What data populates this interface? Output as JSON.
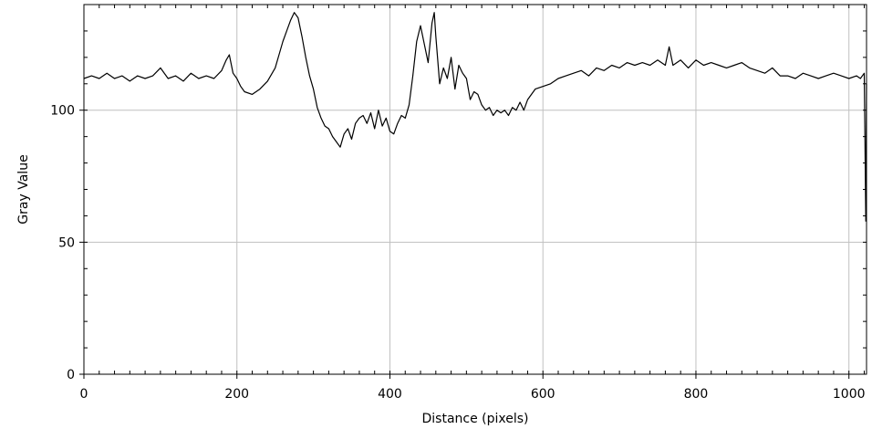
{
  "chart_data": {
    "type": "line",
    "title": "",
    "xlabel": "Distance (pixels)",
    "ylabel": "Gray Value",
    "xlim": [
      0,
      1023
    ],
    "ylim": [
      0,
      140
    ],
    "x_ticks": [
      {
        "value": 0,
        "label": "0"
      },
      {
        "value": 200,
        "label": "200"
      },
      {
        "value": 400,
        "label": "400"
      },
      {
        "value": 600,
        "label": "600"
      },
      {
        "value": 800,
        "label": "800"
      },
      {
        "value": 1000,
        "label": "1000"
      }
    ],
    "y_ticks": [
      {
        "value": 0,
        "label": "0"
      },
      {
        "value": 50,
        "label": "50"
      },
      {
        "value": 100,
        "label": "100"
      }
    ],
    "grid": true,
    "line_color": "#000000",
    "grid_color": "#c0c0c0",
    "series": [
      {
        "x": [
          0,
          10,
          20,
          30,
          40,
          50,
          60,
          70,
          80,
          90,
          100,
          110,
          120,
          130,
          140,
          150,
          160,
          170,
          180,
          186,
          190,
          195,
          200,
          205,
          210,
          220,
          230,
          240,
          250,
          255,
          260,
          265,
          270,
          275,
          280,
          285,
          290,
          295,
          300,
          305,
          310,
          315,
          320,
          325,
          330,
          335,
          340,
          345,
          350,
          355,
          360,
          365,
          370,
          375,
          380,
          385,
          390,
          395,
          400,
          405,
          410,
          415,
          420,
          425,
          430,
          435,
          440,
          445,
          450,
          455,
          458,
          460,
          465,
          470,
          475,
          480,
          485,
          490,
          495,
          500,
          505,
          510,
          515,
          520,
          525,
          530,
          535,
          540,
          545,
          550,
          555,
          560,
          565,
          570,
          575,
          580,
          590,
          600,
          610,
          620,
          630,
          640,
          650,
          660,
          670,
          680,
          690,
          700,
          710,
          720,
          730,
          740,
          750,
          760,
          765,
          770,
          775,
          780,
          790,
          800,
          810,
          820,
          830,
          840,
          850,
          860,
          870,
          880,
          890,
          900,
          910,
          920,
          930,
          940,
          950,
          960,
          970,
          980,
          990,
          1000,
          1010,
          1015,
          1020,
          1022,
          1023
        ],
        "values": [
          112,
          113,
          112,
          114,
          112,
          113,
          111,
          113,
          112,
          113,
          116,
          112,
          113,
          111,
          114,
          112,
          113,
          112,
          115,
          119,
          121,
          114,
          112,
          109,
          107,
          106,
          108,
          111,
          116,
          121,
          126,
          130,
          134,
          137,
          135,
          128,
          120,
          113,
          108,
          101,
          97,
          94,
          93,
          90,
          88,
          86,
          91,
          93,
          89,
          95,
          97,
          98,
          95,
          99,
          93,
          100,
          94,
          97,
          92,
          91,
          95,
          98,
          97,
          102,
          113,
          126,
          132,
          125,
          118,
          133,
          137,
          128,
          110,
          116,
          112,
          120,
          108,
          117,
          114,
          112,
          104,
          107,
          106,
          102,
          100,
          101,
          98,
          100,
          99,
          100,
          98,
          101,
          100,
          103,
          100,
          104,
          108,
          109,
          110,
          112,
          113,
          114,
          115,
          113,
          116,
          115,
          117,
          116,
          118,
          117,
          118,
          117,
          119,
          117,
          124,
          117,
          118,
          119,
          116,
          119,
          117,
          118,
          117,
          116,
          117,
          118,
          116,
          115,
          114,
          116,
          113,
          113,
          112,
          114,
          113,
          112,
          113,
          114,
          113,
          112,
          113,
          112,
          114,
          58,
          110
        ]
      }
    ]
  }
}
